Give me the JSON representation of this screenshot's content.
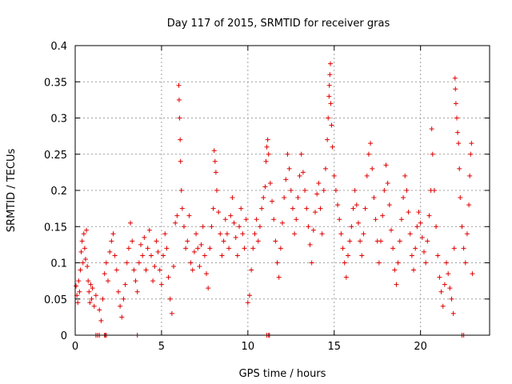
{
  "chart_data": {
    "type": "scatter",
    "title": "Day 117 of 2015, SRMTID for receiver gras",
    "xlabel": "GPS time / hours",
    "ylabel": "SRMTID / TECUs",
    "xlim": [
      0,
      24
    ],
    "ylim": [
      0,
      0.4
    ],
    "x_ticks": [
      0,
      5,
      10,
      15,
      20
    ],
    "x_tick_labels": [
      "0",
      "5",
      "10",
      "15",
      "20"
    ],
    "y_ticks": [
      0,
      0.05,
      0.1,
      0.15,
      0.2,
      0.25,
      0.3,
      0.35,
      0.4
    ],
    "y_tick_labels": [
      "0",
      "0.05",
      "0.1",
      "0.15",
      "0.2",
      "0.25",
      "0.3",
      "0.35",
      "0.4"
    ],
    "grid": true,
    "marker": "+",
    "color": "#e00000",
    "series": [
      {
        "name": "SRMTID",
        "points": [
          [
            0.05,
            0.068
          ],
          [
            0.1,
            0.055
          ],
          [
            0.15,
            0.045
          ],
          [
            0.2,
            0.075
          ],
          [
            0.25,
            0.06
          ],
          [
            0.3,
            0.09
          ],
          [
            0.35,
            0.115
          ],
          [
            0.4,
            0.13
          ],
          [
            0.45,
            0.1
          ],
          [
            0.5,
            0.14
          ],
          [
            0.55,
            0.12
          ],
          [
            0.6,
            0.105
          ],
          [
            0.65,
            0.145
          ],
          [
            0.7,
            0.095
          ],
          [
            0.75,
            0.075
          ],
          [
            0.8,
            0.06
          ],
          [
            0.85,
            0.045
          ],
          [
            0.9,
            0.07
          ],
          [
            0.95,
            0.05
          ],
          [
            1.0,
            0.065
          ],
          [
            1.1,
            0.04
          ],
          [
            1.2,
            0.055
          ],
          [
            1.4,
            0.035
          ],
          [
            1.5,
            0.02
          ],
          [
            1.6,
            0.05
          ],
          [
            1.7,
            0.085
          ],
          [
            1.8,
            0.1
          ],
          [
            1.9,
            0.075
          ],
          [
            2.0,
            0.115
          ],
          [
            2.1,
            0.13
          ],
          [
            2.2,
            0.14
          ],
          [
            2.3,
            0.11
          ],
          [
            2.4,
            0.09
          ],
          [
            2.5,
            0.06
          ],
          [
            2.6,
            0.04
          ],
          [
            2.7,
            0.025
          ],
          [
            2.8,
            0.05
          ],
          [
            2.9,
            0.07
          ],
          [
            3.0,
            0.1
          ],
          [
            3.1,
            0.12
          ],
          [
            3.2,
            0.155
          ],
          [
            3.3,
            0.13
          ],
          [
            3.4,
            0.09
          ],
          [
            3.5,
            0.075
          ],
          [
            3.6,
            0.06
          ],
          [
            3.7,
            0.1
          ],
          [
            3.8,
            0.125
          ],
          [
            3.9,
            0.11
          ],
          [
            4.0,
            0.135
          ],
          [
            4.1,
            0.09
          ],
          [
            4.2,
            0.12
          ],
          [
            4.3,
            0.145
          ],
          [
            4.4,
            0.11
          ],
          [
            4.5,
            0.075
          ],
          [
            4.6,
            0.095
          ],
          [
            4.7,
            0.13
          ],
          [
            4.8,
            0.115
          ],
          [
            4.9,
            0.09
          ],
          [
            5.0,
            0.07
          ],
          [
            5.1,
            0.11
          ],
          [
            5.2,
            0.14
          ],
          [
            5.3,
            0.12
          ],
          [
            5.4,
            0.08
          ],
          [
            5.5,
            0.05
          ],
          [
            5.6,
            0.03
          ],
          [
            5.7,
            0.095
          ],
          [
            5.8,
            0.155
          ],
          [
            5.9,
            0.165
          ],
          [
            6.0,
            0.345
          ],
          [
            6.02,
            0.325
          ],
          [
            6.05,
            0.3
          ],
          [
            6.08,
            0.27
          ],
          [
            6.1,
            0.24
          ],
          [
            6.15,
            0.2
          ],
          [
            6.2,
            0.175
          ],
          [
            6.3,
            0.15
          ],
          [
            6.4,
            0.12
          ],
          [
            6.5,
            0.13
          ],
          [
            6.6,
            0.165
          ],
          [
            6.7,
            0.1
          ],
          [
            6.8,
            0.09
          ],
          [
            6.9,
            0.115
          ],
          [
            7.0,
            0.14
          ],
          [
            7.1,
            0.12
          ],
          [
            7.2,
            0.095
          ],
          [
            7.3,
            0.125
          ],
          [
            7.4,
            0.15
          ],
          [
            7.5,
            0.11
          ],
          [
            7.6,
            0.085
          ],
          [
            7.7,
            0.065
          ],
          [
            7.8,
            0.12
          ],
          [
            7.9,
            0.15
          ],
          [
            8.0,
            0.175
          ],
          [
            8.05,
            0.255
          ],
          [
            8.1,
            0.24
          ],
          [
            8.15,
            0.225
          ],
          [
            8.2,
            0.2
          ],
          [
            8.3,
            0.17
          ],
          [
            8.4,
            0.14
          ],
          [
            8.5,
            0.11
          ],
          [
            8.6,
            0.13
          ],
          [
            8.7,
            0.16
          ],
          [
            8.8,
            0.14
          ],
          [
            8.9,
            0.12
          ],
          [
            9.0,
            0.165
          ],
          [
            9.1,
            0.19
          ],
          [
            9.2,
            0.155
          ],
          [
            9.3,
            0.135
          ],
          [
            9.4,
            0.11
          ],
          [
            9.5,
            0.15
          ],
          [
            9.6,
            0.175
          ],
          [
            9.7,
            0.14
          ],
          [
            9.8,
            0.12
          ],
          [
            9.9,
            0.16
          ],
          [
            10.0,
            0.045
          ],
          [
            10.1,
            0.055
          ],
          [
            10.2,
            0.09
          ],
          [
            10.3,
            0.12
          ],
          [
            10.4,
            0.14
          ],
          [
            10.5,
            0.16
          ],
          [
            10.6,
            0.13
          ],
          [
            10.7,
            0.15
          ],
          [
            10.8,
            0.175
          ],
          [
            10.9,
            0.19
          ],
          [
            11.0,
            0.205
          ],
          [
            11.05,
            0.24
          ],
          [
            11.1,
            0.26
          ],
          [
            11.15,
            0.27
          ],
          [
            11.2,
            0.25
          ],
          [
            11.3,
            0.21
          ],
          [
            11.4,
            0.185
          ],
          [
            11.5,
            0.16
          ],
          [
            11.6,
            0.13
          ],
          [
            11.7,
            0.1
          ],
          [
            11.8,
            0.08
          ],
          [
            11.9,
            0.12
          ],
          [
            12.0,
            0.155
          ],
          [
            12.1,
            0.19
          ],
          [
            12.2,
            0.215
          ],
          [
            12.3,
            0.25
          ],
          [
            12.4,
            0.23
          ],
          [
            12.5,
            0.2
          ],
          [
            12.6,
            0.175
          ],
          [
            12.7,
            0.14
          ],
          [
            12.8,
            0.16
          ],
          [
            12.9,
            0.19
          ],
          [
            13.0,
            0.22
          ],
          [
            13.1,
            0.25
          ],
          [
            13.2,
            0.225
          ],
          [
            13.3,
            0.2
          ],
          [
            13.4,
            0.175
          ],
          [
            13.5,
            0.15
          ],
          [
            13.6,
            0.125
          ],
          [
            13.7,
            0.1
          ],
          [
            13.8,
            0.145
          ],
          [
            13.9,
            0.17
          ],
          [
            14.0,
            0.195
          ],
          [
            14.1,
            0.21
          ],
          [
            14.2,
            0.175
          ],
          [
            14.3,
            0.14
          ],
          [
            14.4,
            0.2
          ],
          [
            14.5,
            0.23
          ],
          [
            14.6,
            0.27
          ],
          [
            14.65,
            0.3
          ],
          [
            14.7,
            0.33
          ],
          [
            14.72,
            0.345
          ],
          [
            14.75,
            0.36
          ],
          [
            14.78,
            0.375
          ],
          [
            14.8,
            0.32
          ],
          [
            14.85,
            0.29
          ],
          [
            14.9,
            0.26
          ],
          [
            15.0,
            0.22
          ],
          [
            15.1,
            0.2
          ],
          [
            15.2,
            0.18
          ],
          [
            15.3,
            0.16
          ],
          [
            15.4,
            0.14
          ],
          [
            15.5,
            0.12
          ],
          [
            15.6,
            0.1
          ],
          [
            15.7,
            0.08
          ],
          [
            15.8,
            0.11
          ],
          [
            15.9,
            0.13
          ],
          [
            16.0,
            0.15
          ],
          [
            16.1,
            0.175
          ],
          [
            16.2,
            0.2
          ],
          [
            16.3,
            0.18
          ],
          [
            16.4,
            0.155
          ],
          [
            16.5,
            0.13
          ],
          [
            16.6,
            0.11
          ],
          [
            16.7,
            0.14
          ],
          [
            16.8,
            0.175
          ],
          [
            16.9,
            0.22
          ],
          [
            17.0,
            0.25
          ],
          [
            17.1,
            0.265
          ],
          [
            17.2,
            0.23
          ],
          [
            17.3,
            0.19
          ],
          [
            17.4,
            0.16
          ],
          [
            17.5,
            0.13
          ],
          [
            17.6,
            0.1
          ],
          [
            17.7,
            0.13
          ],
          [
            17.8,
            0.165
          ],
          [
            17.9,
            0.2
          ],
          [
            18.0,
            0.235
          ],
          [
            18.1,
            0.21
          ],
          [
            18.2,
            0.18
          ],
          [
            18.3,
            0.145
          ],
          [
            18.4,
            0.12
          ],
          [
            18.5,
            0.09
          ],
          [
            18.6,
            0.07
          ],
          [
            18.7,
            0.1
          ],
          [
            18.8,
            0.13
          ],
          [
            18.9,
            0.16
          ],
          [
            19.0,
            0.19
          ],
          [
            19.1,
            0.22
          ],
          [
            19.2,
            0.2
          ],
          [
            19.3,
            0.17
          ],
          [
            19.4,
            0.14
          ],
          [
            19.5,
            0.11
          ],
          [
            19.6,
            0.09
          ],
          [
            19.7,
            0.12
          ],
          [
            19.8,
            0.15
          ],
          [
            19.9,
            0.17
          ],
          [
            20.0,
            0.155
          ],
          [
            20.1,
            0.135
          ],
          [
            20.2,
            0.115
          ],
          [
            20.3,
            0.1
          ],
          [
            20.4,
            0.13
          ],
          [
            20.5,
            0.165
          ],
          [
            20.6,
            0.2
          ],
          [
            20.65,
            0.285
          ],
          [
            20.7,
            0.25
          ],
          [
            20.8,
            0.2
          ],
          [
            20.9,
            0.15
          ],
          [
            21.0,
            0.11
          ],
          [
            21.1,
            0.08
          ],
          [
            21.2,
            0.06
          ],
          [
            21.3,
            0.04
          ],
          [
            21.4,
            0.07
          ],
          [
            21.5,
            0.1
          ],
          [
            21.6,
            0.085
          ],
          [
            21.7,
            0.065
          ],
          [
            21.8,
            0.05
          ],
          [
            21.9,
            0.03
          ],
          [
            21.95,
            0.12
          ],
          [
            22.0,
            0.355
          ],
          [
            22.02,
            0.34
          ],
          [
            22.05,
            0.32
          ],
          [
            22.1,
            0.3
          ],
          [
            22.15,
            0.28
          ],
          [
            22.2,
            0.265
          ],
          [
            22.25,
            0.23
          ],
          [
            22.3,
            0.19
          ],
          [
            22.4,
            0.15
          ],
          [
            22.5,
            0.12
          ],
          [
            22.6,
            0.1
          ],
          [
            22.7,
            0.14
          ],
          [
            22.8,
            0.18
          ],
          [
            22.85,
            0.22
          ],
          [
            22.9,
            0.25
          ],
          [
            22.95,
            0.265
          ],
          [
            23.0,
            0.085
          ],
          [
            1.2,
            0.0
          ],
          [
            1.3,
            0.0
          ],
          [
            1.4,
            0.0
          ],
          [
            1.7,
            0.0
          ],
          [
            1.75,
            0.0
          ],
          [
            1.8,
            0.0
          ],
          [
            3.6,
            0.0
          ],
          [
            11.1,
            0.0
          ],
          [
            11.2,
            0.0
          ],
          [
            11.25,
            0.0
          ],
          [
            22.4,
            0.0
          ],
          [
            22.5,
            0.0
          ]
        ]
      }
    ]
  }
}
